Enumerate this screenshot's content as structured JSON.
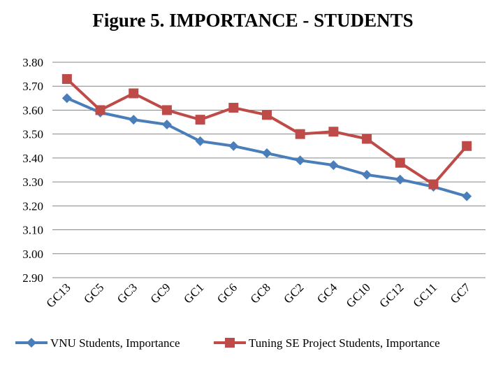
{
  "chart_data": {
    "type": "line",
    "title": "Figure 5. IMPORTANCE - STUDENTS",
    "xlabel": "",
    "ylabel": "",
    "ylim": [
      2.9,
      3.8
    ],
    "yticks": [
      "2.90",
      "3.00",
      "3.10",
      "3.20",
      "3.30",
      "3.40",
      "3.50",
      "3.60",
      "3.70",
      "3.80"
    ],
    "grid": true,
    "legend_position": "bottom",
    "categories": [
      "GC13",
      "GC5",
      "GC3",
      "GC9",
      "GC1",
      "GC6",
      "GC8",
      "GC2",
      "GC4",
      "GC10",
      "GC12",
      "GC11",
      "GC7"
    ],
    "series": [
      {
        "name": "VNU Students, Importance",
        "color": "#4a7ebb",
        "marker": "diamond",
        "values": [
          3.65,
          3.59,
          3.56,
          3.54,
          3.47,
          3.45,
          3.42,
          3.39,
          3.37,
          3.33,
          3.31,
          3.28,
          3.24
        ]
      },
      {
        "name": "Tuning SE Project Students, Importance",
        "color": "#be4b48",
        "marker": "square",
        "values": [
          3.73,
          3.6,
          3.67,
          3.6,
          3.56,
          3.61,
          3.58,
          3.5,
          3.51,
          3.48,
          3.38,
          3.29,
          3.45
        ]
      }
    ]
  }
}
